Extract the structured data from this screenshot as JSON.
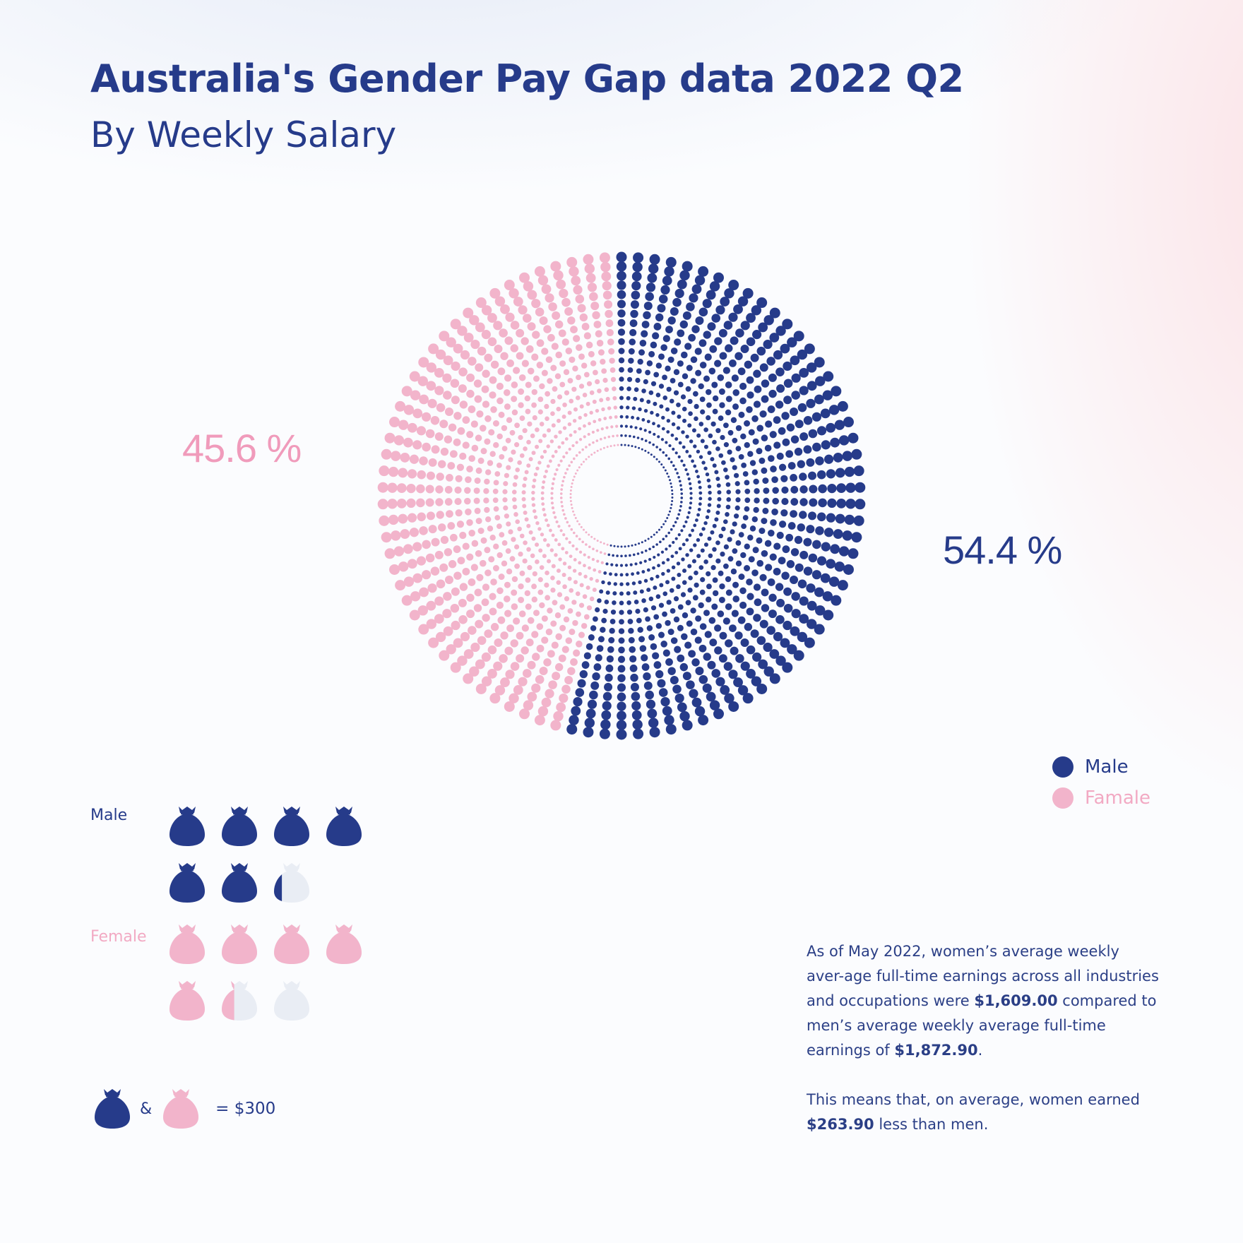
{
  "header": {
    "title": "Australia's Gender Pay Gap data 2022 Q2",
    "subtitle": "By Weekly Salary"
  },
  "colors": {
    "male": "#263b8a",
    "female": "#f2b4cb",
    "female_text": "#f09bbb",
    "empty": "#e9edf4"
  },
  "chart_data": {
    "type": "pie",
    "style": "radial dot ring",
    "title": "Australia's Gender Pay Gap data 2022 Q2",
    "subtitle": "By Weekly Salary",
    "slices": [
      {
        "label": "Male",
        "value": 54.4,
        "value_label": "54.4 %",
        "color": "#263b8a"
      },
      {
        "label": "Famale",
        "value": 45.6,
        "value_label": "45.6 %",
        "color": "#f2b4cb"
      }
    ],
    "legend": {
      "placement": "bottom-right",
      "entries": [
        "Male",
        "Famale"
      ]
    }
  },
  "pictogram": {
    "unit_value": 300,
    "rows": [
      {
        "label": "Male",
        "value": 1872.9,
        "color": "#263b8a"
      },
      {
        "label": "Female",
        "value": 1609.0,
        "color": "#f2b4cb"
      }
    ],
    "key": {
      "amp": "&",
      "equals": "= $300"
    }
  },
  "note": {
    "p1_a": "As of May 2022, women’s average weekly aver-age full-time earnings across all industries and occupations were ",
    "p1_b": "$1,609.00",
    "p1_c": " compared to men’s average weekly average full-time earnings of ",
    "p1_d": "$1,872.90",
    "p1_e": ".",
    "p2_a": "This means that, on average, women earned ",
    "p2_b": "$263.90",
    "p2_c": " less than men."
  }
}
